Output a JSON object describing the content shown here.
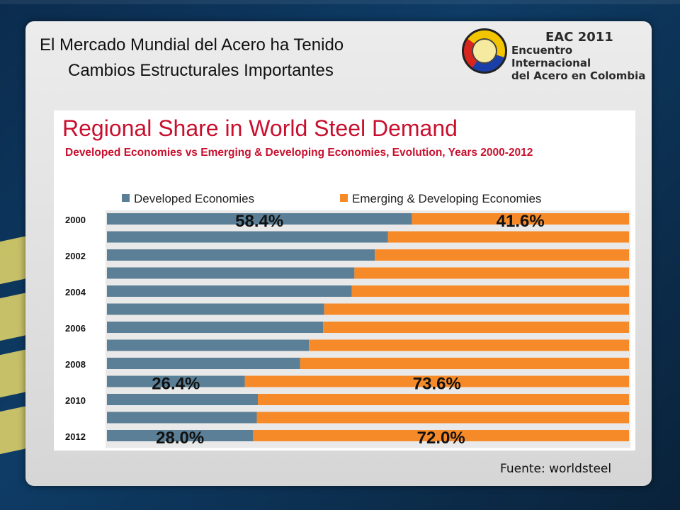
{
  "slide": {
    "title_line1": "El Mercado Mundial del Acero ha Tenido",
    "title_line2": "Cambios Estructurales Importantes",
    "logo": {
      "line1": "EAC 2011",
      "line2": "Encuentro Internacional",
      "line3": "del Acero en Colombia"
    },
    "source": "Fuente: worldsteel"
  },
  "colors": {
    "developed": "#5b7f96",
    "emerging": "#f68a28",
    "title_red": "#c8102e"
  },
  "chart_data": {
    "type": "bar",
    "orientation": "horizontal-stacked-100",
    "title": "Regional Share in World Steel Demand",
    "subtitle": "Developed Economies vs Emerging & Developing Economies, Evolution, Years 2000-2012",
    "tick_labels": [
      "2000",
      "",
      "2002",
      "",
      "2004",
      "",
      "2006",
      "",
      "2008",
      "",
      "2010",
      "",
      "2012"
    ],
    "categories": [
      "2000",
      "2001",
      "2002",
      "2003",
      "2004",
      "2005",
      "2006",
      "2007",
      "2008",
      "2009",
      "2010",
      "2011",
      "2012"
    ],
    "series": [
      {
        "name": "Developed Economies",
        "values": [
          58.4,
          53.8,
          51.3,
          47.4,
          46.9,
          41.6,
          41.4,
          38.7,
          37.0,
          26.4,
          28.9,
          28.7,
          28.0
        ]
      },
      {
        "name": "Emerging & Developing Economies",
        "values": [
          41.6,
          46.2,
          48.7,
          52.6,
          53.1,
          58.4,
          58.6,
          61.3,
          63.0,
          73.6,
          71.1,
          71.3,
          72.0
        ]
      }
    ],
    "data_labels": [
      {
        "index": 0,
        "developed": "58.4%",
        "emerging": "41.6%"
      },
      {
        "index": 9,
        "developed": "26.4%",
        "emerging": "73.6%"
      },
      {
        "index": 12,
        "developed": "28.0%",
        "emerging": "72.0%"
      }
    ],
    "xlim": [
      0,
      100
    ],
    "legend": "top"
  }
}
